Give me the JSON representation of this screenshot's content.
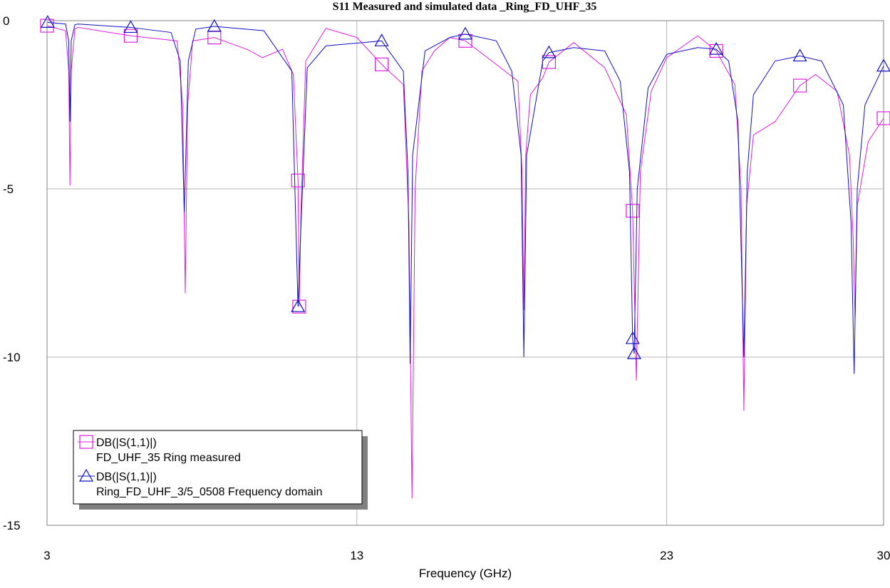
{
  "chart_data": {
    "type": "line",
    "title": "S11 Measured and simulated data _Ring_FD_UHF_35",
    "x_label": "Frequency (GHz)",
    "xlim": [
      3,
      30
    ],
    "ylim": [
      -15,
      0
    ],
    "xticks": [
      3,
      13,
      23,
      30
    ],
    "yticks": [
      0,
      -5,
      -10,
      -15
    ],
    "grid": true,
    "legend": "lower-left",
    "series": [
      {
        "name": "DB(|S(1,1)|)",
        "source": "FD_UHF_35 Ring measured",
        "color": "#e020e0",
        "marker": "square",
        "x": [
          3.0,
          3.6,
          3.7,
          3.74,
          3.78,
          3.9,
          4.0,
          5.7,
          7.2,
          7.38,
          7.46,
          7.54,
          7.7,
          8.4,
          9.5,
          9.95,
          10.6,
          10.95,
          11.1,
          11.14,
          11.2,
          11.35,
          12.0,
          13.0,
          13.8,
          14.5,
          14.68,
          14.78,
          14.88,
          15.1,
          15.5,
          16.0,
          16.5,
          17.5,
          18.2,
          18.33,
          18.39,
          18.45,
          18.6,
          19.0,
          19.2,
          20.0,
          21.0,
          21.7,
          21.9,
          22.02,
          22.15,
          22.5,
          23.0,
          24.0,
          24.6,
          25.2,
          25.4,
          25.49,
          25.58,
          25.8,
          26.5,
          27.3,
          27.8,
          28.5,
          28.9,
          29.02,
          29.08,
          29.15,
          29.5,
          30.0
        ],
        "values": [
          -0.15,
          -0.3,
          -1.5,
          -4.9,
          -1.5,
          -0.25,
          -0.2,
          -0.45,
          -0.6,
          -2.5,
          -8.1,
          -2.5,
          -0.6,
          -0.5,
          -0.87,
          -1.1,
          -0.85,
          -1.6,
          -4.75,
          -8.5,
          -5.5,
          -1.2,
          -0.23,
          -0.5,
          -1.3,
          -1.9,
          -6.0,
          -14.2,
          -5.0,
          -1.5,
          -0.9,
          -0.5,
          -0.6,
          -1.3,
          -1.8,
          -4.5,
          -8.6,
          -4.0,
          -2.2,
          -1.7,
          -1.23,
          -0.65,
          -1.4,
          -2.8,
          -5.65,
          -10.7,
          -4.5,
          -2.1,
          -1.1,
          -0.45,
          -0.9,
          -1.9,
          -5.0,
          -11.6,
          -5.5,
          -3.4,
          -3.0,
          -1.93,
          -1.6,
          -2.1,
          -4.0,
          -6.5,
          -8.9,
          -5.5,
          -3.6,
          -2.9
        ]
      },
      {
        "name": "DB(|S(1,1)|)",
        "source": "Ring_FD_UHF_3/5_0508 Frequency domain",
        "color": "#1010c0",
        "marker": "triangle",
        "x": [
          3.02,
          3.6,
          3.7,
          3.74,
          3.78,
          3.9,
          4.0,
          5.7,
          7.0,
          7.3,
          7.43,
          7.56,
          7.8,
          8.4,
          10.0,
          10.9,
          11.1,
          11.2,
          11.4,
          12.0,
          13.8,
          14.5,
          14.65,
          14.72,
          14.8,
          15.2,
          16.0,
          16.5,
          17.5,
          18.0,
          18.3,
          18.39,
          18.48,
          19.0,
          19.2,
          20.0,
          21.0,
          21.5,
          21.8,
          21.9,
          21.95,
          22.05,
          22.4,
          23.0,
          24.0,
          24.6,
          25.0,
          25.3,
          25.49,
          25.6,
          25.8,
          26.5,
          27.3,
          28.0,
          28.7,
          28.95,
          29.05,
          29.15,
          29.4,
          30.0
        ],
        "values": [
          -0.05,
          -0.1,
          -0.6,
          -3.0,
          -0.6,
          -0.12,
          -0.1,
          -0.2,
          -0.35,
          -1.2,
          -5.7,
          -1.2,
          -0.25,
          -0.17,
          -0.3,
          -1.5,
          -8.5,
          -6.0,
          -1.4,
          -0.75,
          -0.6,
          -1.5,
          -4.5,
          -10.2,
          -4.0,
          -0.9,
          -0.5,
          -0.4,
          -0.6,
          -1.5,
          -4.0,
          -10.0,
          -4.0,
          -1.2,
          -0.95,
          -0.8,
          -0.9,
          -1.8,
          -4.5,
          -9.45,
          -9.9,
          -5.0,
          -2.0,
          -1.0,
          -0.8,
          -0.85,
          -1.2,
          -3.0,
          -10.0,
          -4.5,
          -2.2,
          -1.2,
          -1.05,
          -1.2,
          -2.5,
          -6.0,
          -10.5,
          -5.0,
          -2.5,
          -1.35
        ]
      }
    ]
  }
}
